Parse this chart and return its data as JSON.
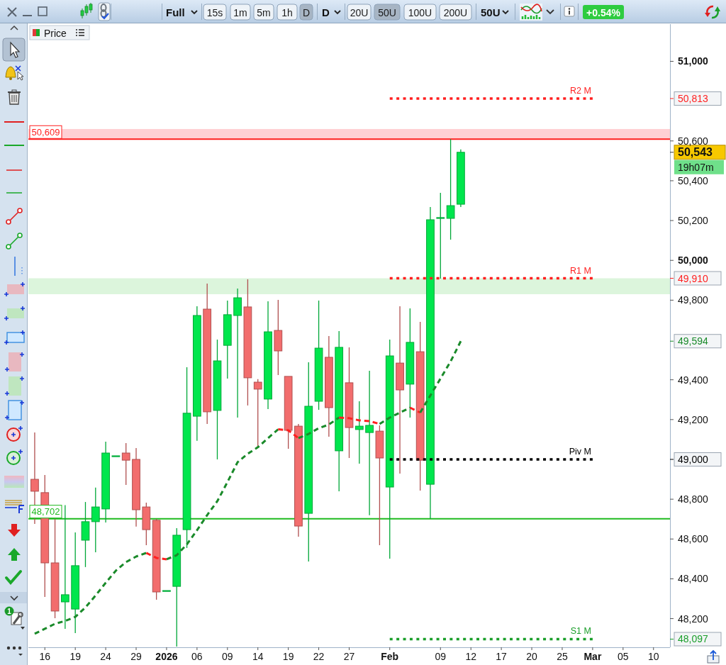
{
  "chart_data": {
    "type": "candlestick",
    "title": "Price",
    "categories": [
      null,
      "16",
      null,
      null,
      "19",
      null,
      null,
      "24",
      null,
      null,
      "29",
      null,
      null,
      "2026",
      null,
      null,
      "06",
      null,
      null,
      "09",
      null,
      null,
      "14",
      null,
      null,
      "19",
      null,
      null,
      "22",
      null,
      null,
      "27",
      null,
      null,
      null,
      "Feb",
      null,
      null,
      null,
      null,
      "09",
      null,
      null,
      "12",
      null,
      null,
      "17",
      null,
      null,
      "20",
      null,
      null,
      "25",
      null,
      null,
      "Mar",
      null,
      null,
      "05",
      null,
      null,
      "10",
      null
    ],
    "ohlc": [
      [
        48900,
        49135,
        48676,
        48840
      ],
      [
        48833,
        48922,
        48309,
        48480
      ],
      [
        48480,
        48701,
        48202,
        48238
      ],
      [
        48284,
        48770,
        48149,
        48320
      ],
      [
        48248,
        48633,
        48127,
        48466
      ],
      [
        48594,
        48786,
        48459,
        48687
      ],
      [
        48687,
        48858,
        48533,
        48761
      ],
      [
        48751,
        49089,
        48683,
        49032
      ],
      [
        49018,
        49018,
        49018,
        49018
      ],
      [
        49032,
        49082,
        48872,
        48996
      ],
      [
        49000,
        49057,
        48662,
        48747
      ],
      [
        48761,
        48783,
        48569,
        48647
      ],
      [
        48694,
        48701,
        48295,
        48334
      ],
      [
        48341,
        48341,
        48341,
        48341
      ],
      [
        48362,
        48654,
        48060,
        48619
      ],
      [
        48647,
        49463,
        48555,
        49232
      ],
      [
        49217,
        49769,
        49093,
        49723
      ],
      [
        49755,
        49883,
        49178,
        49239
      ],
      [
        49246,
        49602,
        49000,
        49495
      ],
      [
        49573,
        49798,
        49406,
        49727
      ],
      [
        49723,
        49858,
        49210,
        49812
      ],
      [
        49766,
        49905,
        49271,
        49410
      ],
      [
        49388,
        49403,
        49064,
        49353
      ],
      [
        49303,
        49794,
        49253,
        49641
      ],
      [
        49648,
        49801,
        49424,
        49545
      ],
      [
        49417,
        49417,
        49053,
        49146
      ],
      [
        49167,
        49178,
        48612,
        48665
      ],
      [
        48729,
        49488,
        48487,
        49267
      ],
      [
        49292,
        49798,
        49249,
        49559
      ],
      [
        49513,
        49620,
        49114,
        49260
      ],
      [
        49043,
        49645,
        48840,
        49563
      ],
      [
        49385,
        49563,
        49007,
        49160
      ],
      [
        49150,
        49292,
        48979,
        49167
      ],
      [
        49135,
        49445,
        48719,
        49171
      ],
      [
        49142,
        49171,
        48569,
        49007
      ],
      [
        48861,
        49602,
        48501,
        49520
      ],
      [
        49484,
        49769,
        48929,
        49349
      ],
      [
        49378,
        49759,
        49210,
        49588
      ],
      [
        49541,
        49691,
        48843,
        48996
      ],
      [
        48875,
        50268,
        48702,
        50204
      ],
      [
        50215,
        50339,
        49908,
        50215
      ],
      [
        50211,
        50609,
        50104,
        50275
      ],
      [
        50282,
        50557,
        50268,
        50543
      ],
      null,
      null,
      null,
      null,
      null,
      null,
      null,
      null,
      null,
      null,
      null,
      null,
      null,
      null,
      null,
      null,
      null,
      null,
      null,
      null
    ],
    "colors": [
      "#f26d6d",
      "#f26d6d",
      "#f26d6d",
      "#00e64d",
      "#00e64d",
      "#00e64d",
      "#00e64d",
      "#00e64d",
      "#00e64d",
      "#f26d6d",
      "#f26d6d",
      "#f26d6d",
      "#f26d6d",
      "#00e64d",
      "#00e64d",
      "#00e64d",
      "#00e64d",
      "#f26d6d",
      "#00e64d",
      "#00e64d",
      "#00e64d",
      "#f26d6d",
      "#f26d6d",
      "#00e64d",
      "#f26d6d",
      "#f26d6d",
      "#f26d6d",
      "#00e64d",
      "#00e64d",
      "#f26d6d",
      "#00e64d",
      "#f26d6d",
      "#00e64d",
      "#00e64d",
      "#f26d6d",
      "#00e64d",
      "#f26d6d",
      "#00e64d",
      "#f26d6d",
      "#00e64d",
      "#00e64d",
      "#00e64d",
      "#00e64d",
      null,
      null,
      null,
      null,
      null,
      null,
      null,
      null,
      null,
      null,
      null,
      null,
      null,
      null,
      null,
      null,
      null,
      null,
      null,
      null
    ],
    "series": [
      {
        "type": "line",
        "name": "R2 M",
        "color": "#ff1f1f",
        "line_style": "dotted",
        "values": [
          null,
          null,
          null,
          null,
          null,
          null,
          null,
          null,
          null,
          null,
          null,
          null,
          null,
          null,
          null,
          null,
          null,
          null,
          null,
          null,
          null,
          null,
          null,
          null,
          null,
          null,
          null,
          null,
          null,
          null,
          null,
          null,
          null,
          null,
          null,
          50813,
          50813,
          50813,
          50813,
          50813,
          50813,
          50813,
          50813,
          50813,
          50813,
          50813,
          50813,
          50813,
          50813,
          50813,
          50813,
          50813,
          50813,
          50813,
          50813,
          50813,
          null,
          null,
          null,
          null,
          null,
          null,
          null
        ]
      },
      {
        "type": "line",
        "name": "R1 M",
        "color": "#ff1f1f",
        "line_style": "dotted",
        "values": [
          null,
          null,
          null,
          null,
          null,
          null,
          null,
          null,
          null,
          null,
          null,
          null,
          null,
          null,
          null,
          null,
          null,
          null,
          null,
          null,
          null,
          null,
          null,
          null,
          null,
          null,
          null,
          null,
          null,
          null,
          null,
          null,
          null,
          null,
          null,
          49910,
          49910,
          49910,
          49910,
          49910,
          49910,
          49910,
          49910,
          49910,
          49910,
          49910,
          49910,
          49910,
          49910,
          49910,
          49910,
          49910,
          49910,
          49910,
          49910,
          49910,
          null,
          null,
          null,
          null,
          null,
          null,
          null
        ]
      },
      {
        "type": "line",
        "name": "Piv M",
        "color": "#000000",
        "line_style": "dotted",
        "values": [
          null,
          null,
          null,
          null,
          null,
          null,
          null,
          null,
          null,
          null,
          null,
          null,
          null,
          null,
          null,
          null,
          null,
          null,
          null,
          null,
          null,
          null,
          null,
          null,
          null,
          null,
          null,
          null,
          null,
          null,
          null,
          null,
          null,
          null,
          null,
          49000,
          49000,
          49000,
          49000,
          49000,
          49000,
          49000,
          49000,
          49000,
          49000,
          49000,
          49000,
          49000,
          49000,
          49000,
          49000,
          49000,
          49000,
          49000,
          49000,
          49000,
          null,
          null,
          null,
          null,
          null,
          null,
          null
        ]
      },
      {
        "type": "line",
        "name": "S1 M",
        "color": "#1a9e2a",
        "line_style": "dotted",
        "values": [
          null,
          null,
          null,
          null,
          null,
          null,
          null,
          null,
          null,
          null,
          null,
          null,
          null,
          null,
          null,
          null,
          null,
          null,
          null,
          null,
          null,
          null,
          null,
          null,
          null,
          null,
          null,
          null,
          null,
          null,
          null,
          null,
          null,
          null,
          null,
          48097,
          48097,
          48097,
          48097,
          48097,
          48097,
          48097,
          48097,
          48097,
          48097,
          48097,
          48097,
          48097,
          48097,
          48097,
          48097,
          48097,
          48097,
          48097,
          48097,
          48097,
          null,
          null,
          null,
          null,
          null,
          null,
          null
        ]
      },
      {
        "type": "line",
        "color": "#1a8a2a",
        "line_style": "dashed",
        "values": [
          48124,
          48149,
          48174,
          48188,
          48209,
          48256,
          48316,
          48380,
          48441,
          48484,
          48512,
          48530,
          null,
          48498,
          48519,
          48573,
          48644,
          48720,
          48790,
          48886,
          48986,
          49028,
          49061,
          49107,
          49151,
          null,
          49107,
          49128,
          49157,
          49175,
          49210,
          null,
          null,
          null,
          49178,
          49210,
          49235,
          49260,
          null,
          null,
          null,
          null,
          null,
          null,
          null,
          null,
          null,
          null,
          null,
          null,
          null,
          null,
          null,
          null,
          null,
          null,
          null,
          null,
          null,
          null,
          null,
          null,
          null
        ]
      },
      {
        "type": "line",
        "color": "#ff2020",
        "line_style": "dashed",
        "values": [
          null,
          null,
          null,
          null,
          null,
          null,
          null,
          null,
          null,
          null,
          null,
          48530,
          48505,
          48498,
          null,
          null,
          null,
          null,
          null,
          null,
          null,
          null,
          null,
          null,
          49151,
          49146,
          49107,
          null,
          null,
          null,
          49210,
          49207,
          49196,
          49192,
          49178,
          null,
          null,
          49260,
          49235,
          null,
          null,
          null,
          null,
          null,
          null,
          null,
          null,
          null,
          null,
          null,
          null,
          null,
          null,
          null,
          null,
          null,
          null,
          null,
          null,
          null,
          null,
          null,
          null
        ]
      },
      {
        "type": "line",
        "color": "#1a8a2a",
        "line_style": "dashed",
        "values": [
          null,
          null,
          null,
          null,
          null,
          null,
          null,
          null,
          null,
          null,
          null,
          null,
          null,
          null,
          null,
          null,
          null,
          null,
          null,
          null,
          null,
          null,
          null,
          null,
          null,
          null,
          null,
          null,
          null,
          null,
          null,
          null,
          null,
          null,
          null,
          null,
          null,
          null,
          49235,
          49321,
          49406,
          49492,
          49594,
          null,
          null,
          null,
          null,
          null,
          null,
          null,
          null,
          null,
          null,
          null,
          null,
          null,
          null,
          null,
          null,
          null,
          null,
          null,
          null
        ]
      }
    ],
    "ylim": [
      48056,
      51187
    ],
    "yticks": [
      {
        "value": 48097,
        "label": "48,097"
      },
      {
        "value": 48200,
        "label": "48,200"
      },
      {
        "value": 48400,
        "label": "48,400"
      },
      {
        "value": 48600,
        "label": "48,600"
      },
      {
        "value": 48800,
        "label": "48,800"
      },
      {
        "value": 49000,
        "label": "49,000"
      },
      {
        "value": 49200,
        "label": "49,200"
      },
      {
        "value": 49400,
        "label": "49,400"
      },
      {
        "value": 49594,
        "label": "49,594"
      },
      {
        "value": 49800,
        "label": "49,800"
      },
      {
        "value": 49910,
        "label": "49,910"
      },
      {
        "value": 50000,
        "label": "50,000"
      },
      {
        "value": 50200,
        "label": "50,200"
      },
      {
        "value": 50400,
        "label": "50,400"
      },
      {
        "value": 50543,
        "label": "50,543"
      },
      {
        "value": 50600,
        "label": "50,600"
      },
      {
        "value": 50813,
        "label": "50,813"
      },
      {
        "value": 51000,
        "label": "51,000"
      }
    ],
    "ref_lines": [
      {
        "axis": "y",
        "value": 50609,
        "label": "50,609",
        "color": "#ff1f1f",
        "line_style": "solid"
      },
      {
        "axis": "y",
        "value": 48702,
        "label": "48,702",
        "color": "#1fba1f",
        "line_style": "solid"
      }
    ],
    "bands": [
      {
        "axis": "y",
        "from": 50609,
        "to": 50660,
        "color": "#ffd0d4"
      },
      {
        "axis": "y",
        "from": 49830,
        "to": 49910,
        "color": "#dcf5dc"
      }
    ],
    "annotations": [
      "19h07m",
      "Full",
      "15s",
      "1m",
      "5m",
      "1h",
      "D",
      "D",
      "20U",
      "50U",
      "100U",
      "200U",
      "50U",
      "+0.54%",
      "1"
    ]
  }
}
